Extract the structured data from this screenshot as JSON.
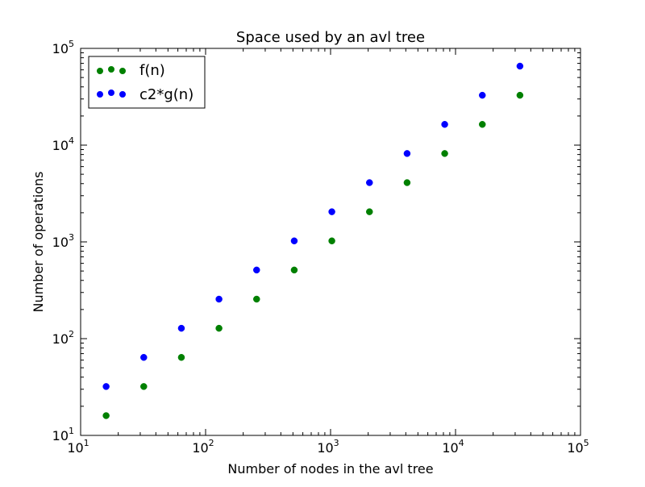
{
  "chart_data": {
    "type": "scatter",
    "title": "Space used by an avl tree",
    "xlabel": "Number of nodes in the avl tree",
    "ylabel": "Number of operations",
    "xscale": "log",
    "yscale": "log",
    "xlim": [
      10,
      100000
    ],
    "ylim": [
      10,
      100000
    ],
    "grid": false,
    "legend_position": "top-left",
    "x_ticks": [
      {
        "value": 10,
        "base": "10",
        "exp": "1"
      },
      {
        "value": 100,
        "base": "10",
        "exp": "2"
      },
      {
        "value": 1000,
        "base": "10",
        "exp": "3"
      },
      {
        "value": 10000,
        "base": "10",
        "exp": "4"
      },
      {
        "value": 100000,
        "base": "10",
        "exp": "5"
      }
    ],
    "y_ticks": [
      {
        "value": 10,
        "base": "10",
        "exp": "1"
      },
      {
        "value": 100,
        "base": "10",
        "exp": "2"
      },
      {
        "value": 1000,
        "base": "10",
        "exp": "3"
      },
      {
        "value": 10000,
        "base": "10",
        "exp": "4"
      },
      {
        "value": 100000,
        "base": "10",
        "exp": "5"
      }
    ],
    "series": [
      {
        "name": "f(n)",
        "color": "#008000",
        "x": [
          16,
          32,
          64,
          128,
          256,
          512,
          1024,
          2048,
          4096,
          8192,
          16384,
          32768
        ],
        "y": [
          16,
          32,
          64,
          128,
          256,
          512,
          1024,
          2048,
          4096,
          8192,
          16384,
          32768
        ]
      },
      {
        "name": "c2*g(n)",
        "color": "#0000ff",
        "x": [
          16,
          32,
          64,
          128,
          256,
          512,
          1024,
          2048,
          4096,
          8192,
          16384,
          32768
        ],
        "y": [
          32,
          64,
          128,
          256,
          512,
          1024,
          2048,
          4096,
          8192,
          16384,
          32768,
          65536
        ]
      }
    ]
  }
}
